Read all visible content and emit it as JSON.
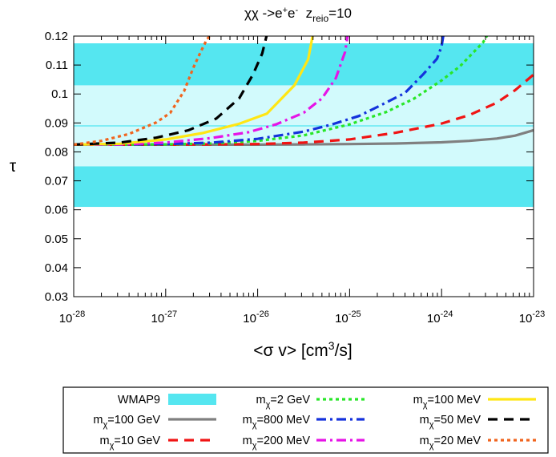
{
  "chart_data": {
    "type": "line",
    "title": {
      "prefix": "χχ ->e",
      "sup1": "+",
      "mid": "e",
      "sup2": "-",
      "gap": "  z",
      "sub": "reio",
      "suffix": "=10"
    },
    "xlabel": {
      "pre": "<σ v> [cm",
      "sup": "3",
      "post": "/s]"
    },
    "ylabel": "τ",
    "xscale": "log",
    "xlim": [
      1e-28,
      1e-23
    ],
    "ylim": [
      0.03,
      0.12
    ],
    "xticks": [
      {
        "base": "10",
        "exp": "-28",
        "value": -28
      },
      {
        "base": "10",
        "exp": "-27",
        "value": -27
      },
      {
        "base": "10",
        "exp": "-26",
        "value": -26
      },
      {
        "base": "10",
        "exp": "-25",
        "value": -25
      },
      {
        "base": "10",
        "exp": "-24",
        "value": -24
      },
      {
        "base": "10",
        "exp": "-23",
        "value": -23
      }
    ],
    "yticks": [
      {
        "label": "0.03",
        "value": 0.03
      },
      {
        "label": "0.04",
        "value": 0.04
      },
      {
        "label": "0.05",
        "value": 0.05
      },
      {
        "label": "0.06",
        "value": 0.06
      },
      {
        "label": "0.07",
        "value": 0.07
      },
      {
        "label": "0.08",
        "value": 0.08
      },
      {
        "label": "0.09",
        "value": 0.09
      },
      {
        "label": "0.1",
        "value": 0.1
      },
      {
        "label": "0.11",
        "value": 0.11
      },
      {
        "label": "0.12",
        "value": 0.12
      }
    ],
    "wmap9": {
      "label": "WMAP9",
      "central": 0.089,
      "sigma1": [
        0.075,
        0.103
      ],
      "sigma2": [
        0.061,
        0.1175
      ],
      "color_outer": "#55e6f0",
      "color_inner": "#d2fafc",
      "color_line": "#2ee0ee"
    },
    "series": [
      {
        "name_pre": "m",
        "name_sub": "χ",
        "name_post": "=100 GeV",
        "color": "#808080",
        "dash": "solid",
        "x": [
          -28,
          -27,
          -26,
          -25.5,
          -25,
          -24.5,
          -24,
          -23.7,
          -23.4,
          -23.2,
          -23
        ],
        "y": [
          0.0825,
          0.0825,
          0.0825,
          0.0826,
          0.0827,
          0.0829,
          0.0833,
          0.0838,
          0.0846,
          0.0856,
          0.0875
        ]
      },
      {
        "name_pre": "m",
        "name_sub": "χ",
        "name_post": "=10 GeV",
        "color": "#f01414",
        "dash": "dash",
        "x": [
          -28,
          -27,
          -26,
          -25.5,
          -25,
          -24.5,
          -24,
          -23.7,
          -23.4,
          -23.2,
          -23
        ],
        "y": [
          0.0825,
          0.0825,
          0.0827,
          0.0832,
          0.0843,
          0.0866,
          0.0898,
          0.0927,
          0.097,
          0.1013,
          0.1067
        ]
      },
      {
        "name_pre": "m",
        "name_sub": "χ",
        "name_post": "=2 GeV",
        "color": "#28e628",
        "dash": "dot",
        "x": [
          -28,
          -27,
          -26.5,
          -26,
          -25.5,
          -25,
          -24.6,
          -24.3,
          -24,
          -23.8,
          -23.55,
          -23.5
        ],
        "y": [
          0.0825,
          0.0826,
          0.0829,
          0.0838,
          0.0857,
          0.0895,
          0.0938,
          0.0984,
          0.1047,
          0.1096,
          0.1178,
          0.1205
        ]
      },
      {
        "name_pre": "m",
        "name_sub": "χ",
        "name_post": "=800 MeV",
        "color": "#1432dc",
        "dash": "dashdot",
        "x": [
          -28,
          -27,
          -26.5,
          -26,
          -25.5,
          -25.2,
          -24.9,
          -24.7,
          -24.4,
          -24.2,
          -24.05,
          -24.0,
          -23.98
        ],
        "y": [
          0.0825,
          0.0827,
          0.0832,
          0.0845,
          0.087,
          0.0894,
          0.0924,
          0.0955,
          0.1003,
          0.1068,
          0.1122,
          0.1165,
          0.1205
        ]
      },
      {
        "name_pre": "m",
        "name_sub": "χ",
        "name_post": "=200 MeV",
        "color": "#e614e6",
        "dash": "dashdot",
        "x": [
          -28,
          -27.5,
          -27,
          -26.5,
          -26.1,
          -25.8,
          -25.5,
          -25.3,
          -25.15,
          -25.05,
          -25.02
        ],
        "y": [
          0.0825,
          0.0826,
          0.0832,
          0.0848,
          0.0868,
          0.0895,
          0.0935,
          0.0985,
          0.1055,
          0.1145,
          0.1205
        ]
      },
      {
        "name_pre": "m",
        "name_sub": "χ",
        "name_post": "=100 MeV",
        "color": "#ffe614",
        "dash": "solid",
        "x": [
          -28,
          -27.5,
          -27,
          -26.6,
          -26.2,
          -25.9,
          -25.6,
          -25.45,
          -25.4
        ],
        "y": [
          0.0825,
          0.0828,
          0.0843,
          0.0865,
          0.0897,
          0.0932,
          0.103,
          0.112,
          0.1205
        ]
      },
      {
        "name_pre": "m",
        "name_sub": "χ",
        "name_post": "=50 MeV",
        "color": "#000000",
        "dash": "dash",
        "x": [
          -28,
          -27.5,
          -27.1,
          -26.75,
          -26.45,
          -26.2,
          -26.05,
          -25.95,
          -25.9
        ],
        "y": [
          0.0825,
          0.0832,
          0.0849,
          0.0875,
          0.0915,
          0.0985,
          0.1068,
          0.114,
          0.1205
        ]
      },
      {
        "name_pre": "m",
        "name_sub": "χ",
        "name_post": "=20 MeV",
        "color": "#f0641e",
        "dash": "dot",
        "x": [
          -28,
          -27.7,
          -27.4,
          -27.1,
          -26.95,
          -26.8,
          -26.7,
          -26.62,
          -26.55,
          -26.5
        ],
        "y": [
          0.0825,
          0.0838,
          0.0862,
          0.0902,
          0.0935,
          0.101,
          0.109,
          0.1145,
          0.119,
          0.1205
        ]
      }
    ]
  }
}
